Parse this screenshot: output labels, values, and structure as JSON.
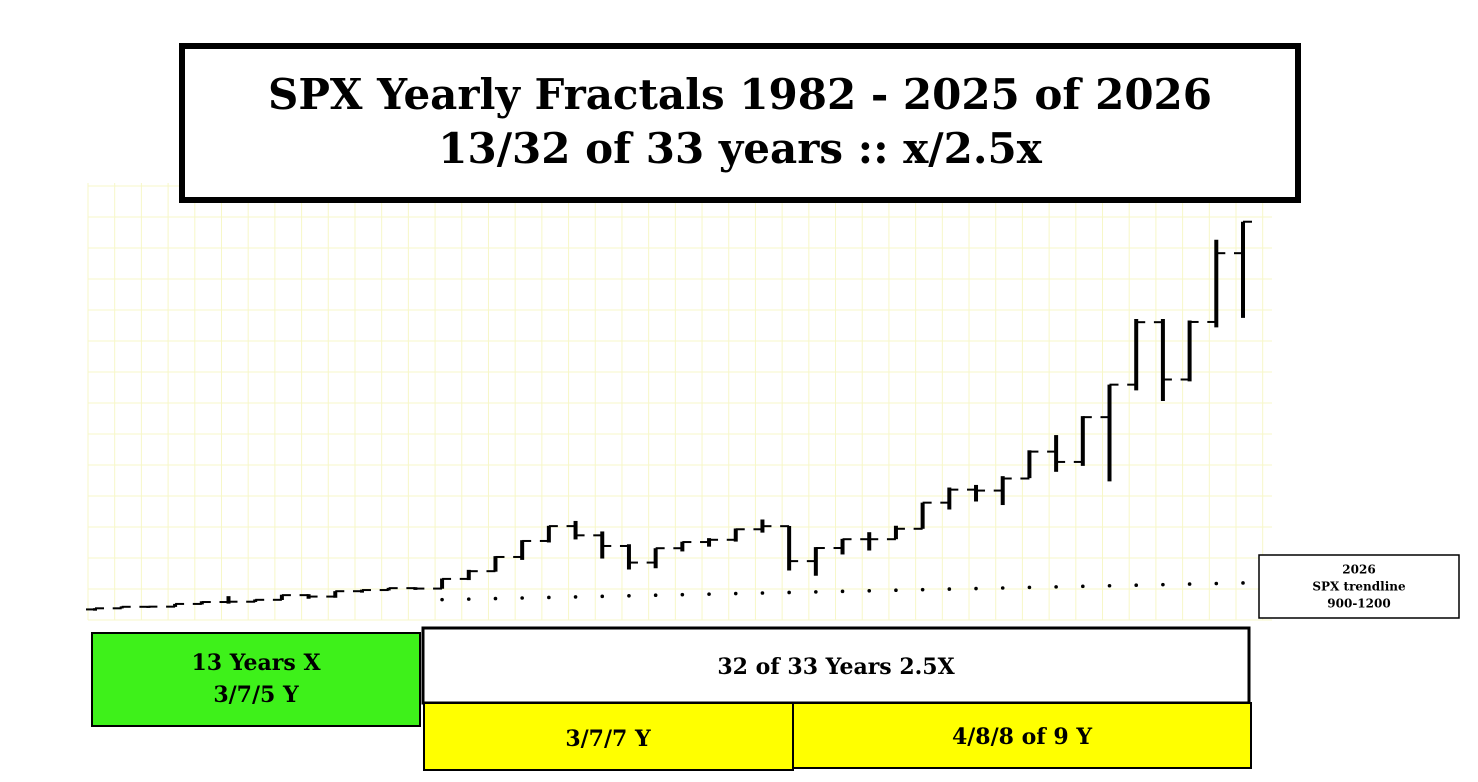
{
  "chart_data": {
    "type": "ohlc",
    "title": [
      "SPX Yearly Fractals   1982 - 2025 of 2026",
      "13/32 of 33 years ::  x/2.5x"
    ],
    "open": [
      122.6,
      140.6,
      164.9,
      167.2,
      211.3,
      242.2,
      247.1,
      277.7,
      353.4,
      330.2,
      417.1,
      435.7,
      466.5,
      459.3,
      615.9,
      740.7,
      970.4,
      1229.2,
      1469.3,
      1320.3,
      1148.1,
      879.8,
      1111.9,
      1211.9,
      1248.3,
      1418.3,
      1468.4,
      903.3,
      1115.1,
      1257.6,
      1257.6,
      1426.2,
      1848.4,
      2058.9,
      2043.9,
      2238.8,
      2673.6,
      2506.9,
      3230.8,
      3756.1,
      4766.2,
      3839.5,
      4769.8,
      5881.6
    ],
    "high": [
      143,
      172,
      170,
      212,
      254,
      337,
      284,
      360,
      369,
      418,
      442,
      471,
      482,
      622,
      762,
      984,
      1242,
      1474,
      1553,
      1383,
      1176,
      1112,
      1217,
      1275,
      1431,
      1576,
      1471,
      1130,
      1263,
      1371,
      1475,
      1849,
      2093,
      2135,
      2277,
      2695,
      2941,
      3247,
      3756,
      4818,
      4818,
      4793,
      6099,
      6390
    ],
    "low": [
      102,
      138,
      147,
      163,
      203,
      216,
      243,
      275,
      295,
      311,
      394,
      429,
      438,
      457,
      597,
      733,
      923,
      1205,
      1254,
      945,
      768,
      788,
      1060,
      1137,
      1219,
      1364,
      752,
      667,
      1011,
      1075,
      1258,
      1426,
      1738,
      1867,
      1810,
      2245,
      2347,
      2444,
      2192,
      3663,
      3492,
      3809,
      4683,
      4835
    ],
    "close": [
      140.6,
      164.9,
      167.2,
      211.3,
      242.2,
      247.1,
      277.7,
      353.4,
      330.2,
      417.1,
      435.7,
      466.5,
      459.3,
      615.9,
      740.7,
      970.4,
      1229.2,
      1469.3,
      1320.3,
      1148.1,
      879.8,
      1111.9,
      1211.9,
      1248.3,
      1418.3,
      1468.4,
      903.3,
      1115.1,
      1257.6,
      1257.6,
      1426.2,
      1848.4,
      2058.9,
      2043.9,
      2238.8,
      2673.6,
      2506.9,
      3230.8,
      3756.1,
      4766.2,
      3839.5,
      4769.8,
      5881.6,
      6390
    ],
    "trendline": [
      null,
      null,
      null,
      null,
      null,
      null,
      null,
      null,
      null,
      null,
      null,
      null,
      null,
      280,
      289,
      298,
      307,
      316,
      325,
      334,
      343,
      352,
      361,
      370,
      379,
      388,
      397,
      406,
      415,
      424,
      433,
      442,
      451,
      460,
      469,
      478,
      487,
      496,
      505,
      514,
      523,
      532,
      541,
      550
    ],
    "ylim": [
      0,
      7000
    ],
    "trend_box": [
      "2026",
      "SPX trendline",
      "900-1200"
    ],
    "boxes": {
      "first": [
        "13 Years   X",
        "3/7/5 Y"
      ],
      "second": "32 of 33 Years    2.5X",
      "second_a": "3/7/7 Y",
      "second_b": "4/8/8 of 9 Y"
    }
  }
}
